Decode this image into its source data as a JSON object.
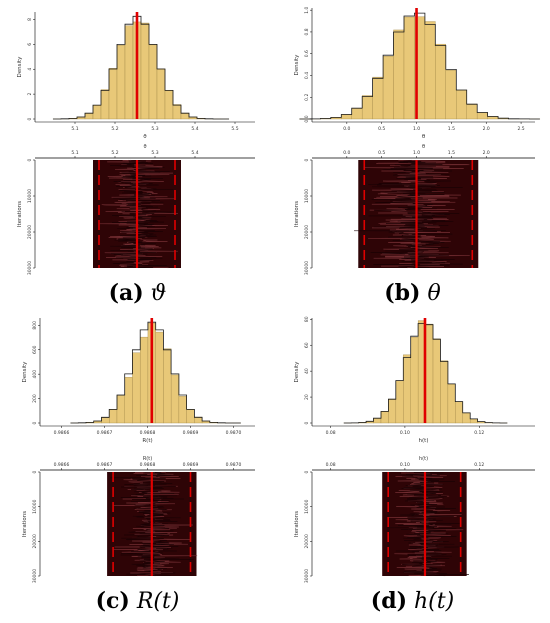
{
  "colors": {
    "bar_fill": "#E8C878",
    "bar_stroke": "#A68B4A",
    "density_line": "#1a1a1a",
    "trace_fill": "#2E0406",
    "trace_line": "#7A3338",
    "mean_line": "#E00000",
    "axis": "#000000"
  },
  "panels": [
    {
      "letter": "(a)",
      "symbol": "ϑ"
    },
    {
      "letter": "(b)",
      "symbol": "θ"
    },
    {
      "letter": "(c)",
      "symbol": "R(t)"
    },
    {
      "letter": "(d)",
      "symbol": "h(t)"
    }
  ],
  "chart_data": [
    {
      "type": "bar",
      "panel": "a-histogram",
      "title": "",
      "xlabel": "ϑ",
      "ylabel": "Density",
      "x_ticks": [
        "5.1",
        "5.2",
        "5.3",
        "5.4",
        "5.5"
      ],
      "x_tick_values": [
        5.1,
        5.2,
        5.3,
        5.4,
        5.5
      ],
      "y_ticks": [
        "0",
        "2",
        "4",
        "6",
        "8"
      ],
      "y_tick_values": [
        0,
        2,
        4,
        6,
        8
      ],
      "xlim": [
        5.0,
        5.55
      ],
      "ylim": [
        0,
        8.6
      ],
      "mean": 5.255,
      "sd": 0.05,
      "bin_width": 0.02
    },
    {
      "type": "line",
      "panel": "a-trace",
      "title": "",
      "xlabel": "ϑ",
      "ylabel": "Iterations",
      "x_ticks": [
        "5.1",
        "5.2",
        "5.3",
        "5.4"
      ],
      "x_tick_values": [
        5.1,
        5.2,
        5.3,
        5.4
      ],
      "y_ticks": [
        "0",
        "10000",
        "20000",
        "30000"
      ],
      "y_tick_values": [
        0,
        10000,
        20000,
        30000
      ],
      "xlim": [
        5.0,
        5.55
      ],
      "ylim": [
        0,
        30000
      ],
      "mean": 5.255,
      "sd": 0.05,
      "interval": [
        5.16,
        5.35
      ]
    },
    {
      "type": "bar",
      "panel": "b-histogram",
      "title": "",
      "xlabel": "θ",
      "ylabel": "Density",
      "x_ticks": [
        "0.0",
        "0.5",
        "1.0",
        "1.5",
        "2.0",
        "2.5"
      ],
      "x_tick_values": [
        0.0,
        0.5,
        1.0,
        1.5,
        2.0,
        2.5
      ],
      "y_ticks": [
        "0.0",
        "0.2",
        "0.4",
        "0.6",
        "0.8",
        "1.0"
      ],
      "y_tick_values": [
        0.0,
        0.2,
        0.4,
        0.6,
        0.8,
        1.0
      ],
      "xlim": [
        -0.5,
        2.7
      ],
      "ylim": [
        0,
        1.02
      ],
      "mean": 1.0,
      "sd": 0.4,
      "bin_width": 0.15
    },
    {
      "type": "line",
      "panel": "b-trace",
      "title": "",
      "xlabel": "θ",
      "ylabel": "Iterations",
      "x_ticks": [
        "0.0",
        "0.5",
        "1.0",
        "1.5",
        "2.0"
      ],
      "x_tick_values": [
        0.0,
        0.5,
        1.0,
        1.5,
        2.0
      ],
      "y_ticks": [
        "0",
        "10000",
        "20000",
        "30000"
      ],
      "y_tick_values": [
        0,
        10000,
        20000,
        30000
      ],
      "xlim": [
        -0.5,
        2.7
      ],
      "ylim": [
        0,
        30000
      ],
      "mean": 1.0,
      "sd": 0.4,
      "interval": [
        0.25,
        1.8
      ]
    },
    {
      "type": "bar",
      "panel": "c-histogram",
      "title": "",
      "xlabel": "R(t)",
      "ylabel": "Density",
      "x_ticks": [
        "0.9866",
        "0.9867",
        "0.9868",
        "0.9869",
        "0.9870"
      ],
      "x_tick_values": [
        0.9866,
        0.9867,
        0.9868,
        0.9869,
        0.987
      ],
      "y_ticks": [
        "0",
        "200",
        "400",
        "600",
        "800"
      ],
      "y_tick_values": [
        0,
        200,
        400,
        600,
        800
      ],
      "xlim": [
        0.98655,
        0.98705
      ],
      "ylim": [
        0,
        860
      ],
      "mean": 0.98681,
      "sd": 4.5e-05,
      "bin_width": 1.8e-05
    },
    {
      "type": "line",
      "panel": "c-trace",
      "title": "",
      "xlabel": "R(t)",
      "ylabel": "Iterations",
      "x_ticks": [
        "0.9866",
        "0.9867",
        "0.9868",
        "0.9869",
        "0.9870"
      ],
      "x_tick_values": [
        0.9866,
        0.9867,
        0.9868,
        0.9869,
        0.987
      ],
      "y_ticks": [
        "0",
        "10000",
        "20000",
        "30000"
      ],
      "y_tick_values": [
        0,
        10000,
        20000,
        30000
      ],
      "xlim": [
        0.98655,
        0.98705
      ],
      "ylim": [
        0,
        30000
      ],
      "mean": 0.98681,
      "sd": 4.5e-05,
      "interval": [
        0.98672,
        0.9869
      ]
    },
    {
      "type": "bar",
      "panel": "d-histogram",
      "title": "",
      "xlabel": "h(t)",
      "ylabel": "Density",
      "x_ticks": [
        "0.08",
        "0.10",
        "0.12"
      ],
      "x_tick_values": [
        0.08,
        0.1,
        0.12
      ],
      "y_ticks": [
        "0",
        "20",
        "40",
        "60",
        "80"
      ],
      "y_tick_values": [
        0,
        20,
        40,
        60,
        80
      ],
      "xlim": [
        0.075,
        0.135
      ],
      "ylim": [
        0,
        81
      ],
      "mean": 0.1054,
      "sd": 0.0052,
      "bin_width": 0.002
    },
    {
      "type": "line",
      "panel": "d-trace",
      "title": "",
      "xlabel": "h(t)",
      "ylabel": "Iterations",
      "x_ticks": [
        "0.08",
        "0.10",
        "0.12"
      ],
      "x_tick_values": [
        0.08,
        0.1,
        0.12
      ],
      "y_ticks": [
        "0",
        "10000",
        "20000",
        "30000"
      ],
      "y_tick_values": [
        0,
        10000,
        20000,
        30000
      ],
      "xlim": [
        0.075,
        0.135
      ],
      "ylim": [
        0,
        30000
      ],
      "mean": 0.1054,
      "sd": 0.0052,
      "interval": [
        0.0955,
        0.115
      ]
    }
  ]
}
